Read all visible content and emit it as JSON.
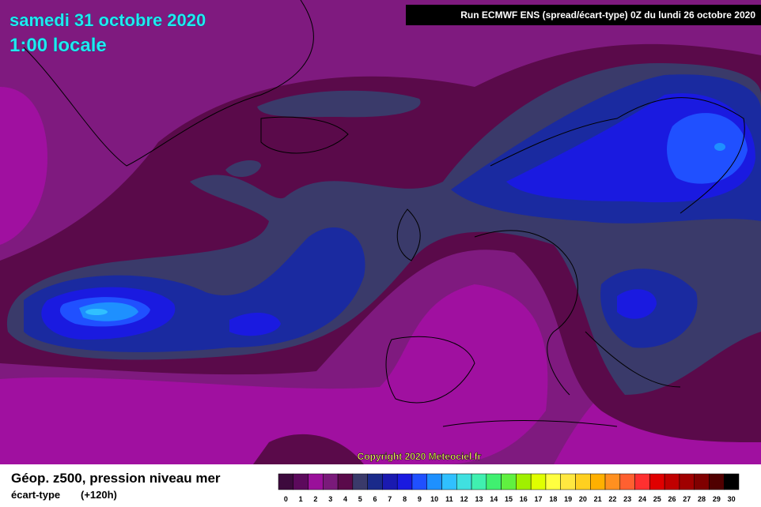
{
  "header": {
    "date": "samedi 31 octobre 2020",
    "time": "1:00 locale",
    "run": "Run ECMWF ENS (spread/écart-type) 0Z du lundi 26 octobre 2020"
  },
  "copyright": "Copyright 2020 Meteociel.fr",
  "footer": {
    "title": "Géop. z500, pression niveau mer",
    "subtitle": "écart-type",
    "lead": "(+120h)"
  },
  "scale": {
    "labels": [
      0,
      1,
      2,
      3,
      4,
      5,
      6,
      7,
      8,
      9,
      10,
      11,
      12,
      13,
      14,
      15,
      16,
      17,
      18,
      19,
      20,
      21,
      22,
      23,
      24,
      25,
      26,
      27,
      28,
      29,
      30
    ],
    "colors": [
      "#3d0a3d",
      "#5c0a5c",
      "#9a109a",
      "#7a1a7a",
      "#5a0a4a",
      "#3a3a6a",
      "#1a2a8a",
      "#1a1ab0",
      "#1a1ae0",
      "#2050ff",
      "#1e90ff",
      "#30c0ff",
      "#40e0e0",
      "#40f0b0",
      "#40f070",
      "#60f040",
      "#a0f000",
      "#e0ff00",
      "#ffff40",
      "#ffe840",
      "#ffd020",
      "#ffb000",
      "#ff9020",
      "#ff6030",
      "#ff3030",
      "#e00000",
      "#c00000",
      "#a00000",
      "#800000",
      "#500000",
      "#000000"
    ]
  }
}
